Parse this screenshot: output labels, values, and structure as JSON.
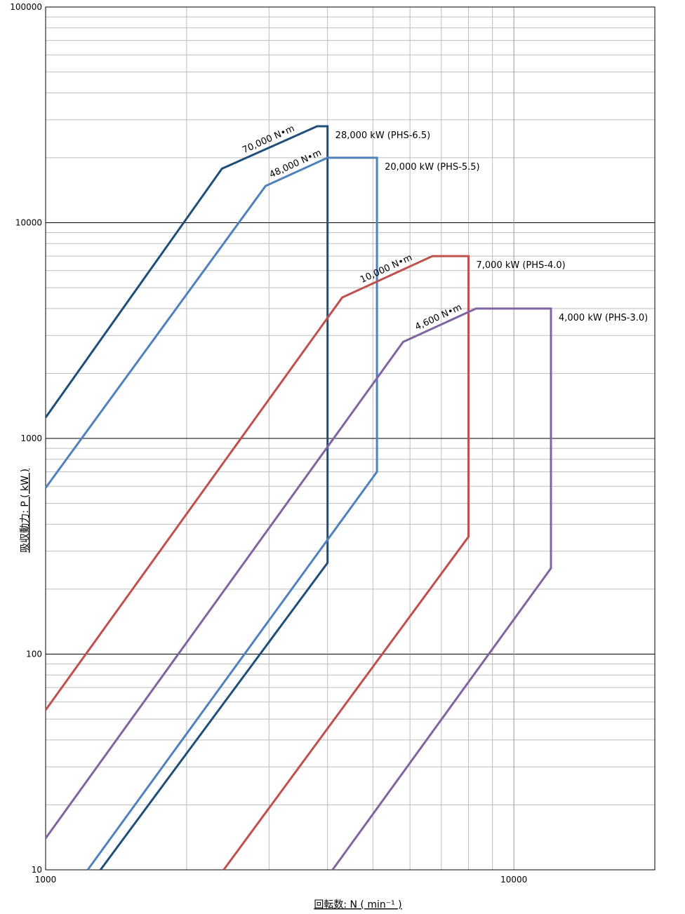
{
  "chart_data": {
    "type": "line",
    "xscale": "log",
    "yscale": "log",
    "xlim": [
      1000,
      20000
    ],
    "ylim": [
      10,
      100000
    ],
    "xlabel": "回転数: N ( min⁻¹ )",
    "ylabel": "吸収動力: P ( kW )",
    "x_ticks": [
      {
        "value": 1000,
        "label": "1000"
      },
      {
        "value": 10000,
        "label": "10000"
      }
    ],
    "y_ticks": [
      {
        "value": 10,
        "label": "10"
      },
      {
        "value": 100,
        "label": "100"
      },
      {
        "value": 1000,
        "label": "1000"
      },
      {
        "value": 10000,
        "label": "10000"
      },
      {
        "value": 100000,
        "label": "100000"
      }
    ],
    "grid": true,
    "series": [
      {
        "name": "28,000 kW (PHS-6.5)",
        "color": "#1f4e79",
        "points": [
          [
            1000,
            1250
          ],
          [
            2380,
            17800
          ],
          [
            3800,
            28000
          ],
          [
            4000,
            28000
          ],
          [
            4000,
            265
          ],
          [
            1310,
            10
          ]
        ],
        "torque_label": "70,000 N•m",
        "capacity_label": "28,000 kW (PHS-6.5)"
      },
      {
        "name": "20,000 kW (PHS-5.5)",
        "color": "#4f81bd",
        "points": [
          [
            1000,
            590
          ],
          [
            2950,
            14800
          ],
          [
            4000,
            20000
          ],
          [
            5100,
            20000
          ],
          [
            5100,
            700
          ],
          [
            1230,
            10
          ]
        ],
        "torque_label": "48,000 N•m",
        "capacity_label": "20,000 kW (PHS-5.5)"
      },
      {
        "name": "7,000 kW (PHS-4.0)",
        "color": "#c0504d",
        "points": [
          [
            1000,
            55
          ],
          [
            4300,
            4500
          ],
          [
            6700,
            7000
          ],
          [
            8000,
            7000
          ],
          [
            8000,
            350
          ],
          [
            2400,
            10
          ]
        ],
        "torque_label": "10,000 N•m",
        "capacity_label": "7,000 kW (PHS-4.0)"
      },
      {
        "name": "4,000 kW (PHS-3.0)",
        "color": "#8064a2",
        "points": [
          [
            1000,
            14
          ],
          [
            5800,
            2800
          ],
          [
            8300,
            4000
          ],
          [
            12000,
            4000
          ],
          [
            12000,
            250
          ],
          [
            4100,
            10
          ]
        ],
        "torque_label": "4,600 N•m",
        "capacity_label": "4,000 kW (PHS-3.0)"
      }
    ]
  }
}
